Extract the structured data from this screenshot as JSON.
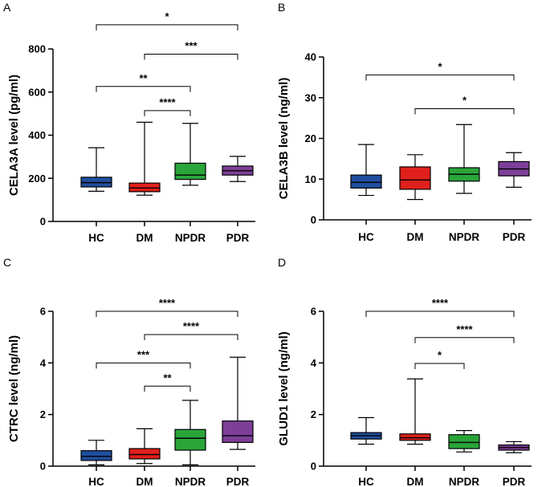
{
  "chart_data": [
    {
      "panel": "A",
      "type": "box",
      "ylabel": "CELA3A level (pg/ml)",
      "ylim": [
        0,
        800
      ],
      "yticks": [
        0,
        200,
        400,
        600,
        800
      ],
      "categories": [
        "HC",
        "DM",
        "NPDR",
        "PDR"
      ],
      "boxes": [
        {
          "name": "HC",
          "min": 140,
          "q1": 160,
          "median": 180,
          "q3": 205,
          "max": 342,
          "color": "#1f4e9e"
        },
        {
          "name": "DM",
          "min": 122,
          "q1": 138,
          "median": 155,
          "q3": 178,
          "max": 460,
          "color": "#e0201c"
        },
        {
          "name": "NPDR",
          "min": 168,
          "q1": 195,
          "median": 215,
          "q3": 270,
          "max": 455,
          "color": "#2aa53a"
        },
        {
          "name": "PDR",
          "min": 185,
          "q1": 215,
          "median": 235,
          "q3": 257,
          "max": 302,
          "color": "#7d3f98"
        }
      ],
      "significance": [
        {
          "from": "NPDR",
          "to": "DM",
          "label": "****",
          "level": 514
        },
        {
          "from": "HC",
          "to": "NPDR",
          "label": "**",
          "level": 626
        },
        {
          "from": "DM",
          "to": "PDR",
          "label": "***",
          "level": 776
        },
        {
          "from": "HC",
          "to": "PDR",
          "label": "*",
          "level": 912
        }
      ]
    },
    {
      "panel": "B",
      "type": "box",
      "ylabel": "CELA3B level (ng/ml)",
      "ylim": [
        0,
        40
      ],
      "yticks": [
        0,
        10,
        20,
        30,
        40
      ],
      "categories": [
        "HC",
        "DM",
        "NPDR",
        "PDR"
      ],
      "boxes": [
        {
          "name": "HC",
          "min": 6,
          "q1": 7.8,
          "median": 9.2,
          "q3": 11,
          "max": 18.5,
          "color": "#1f4e9e"
        },
        {
          "name": "DM",
          "min": 5,
          "q1": 7.5,
          "median": 9.8,
          "q3": 13,
          "max": 16,
          "color": "#e0201c"
        },
        {
          "name": "NPDR",
          "min": 6.5,
          "q1": 9.5,
          "median": 11.2,
          "q3": 12.8,
          "max": 23.4,
          "color": "#2aa53a"
        },
        {
          "name": "PDR",
          "min": 8,
          "q1": 10.8,
          "median": 12.5,
          "q3": 14.3,
          "max": 16.5,
          "color": "#7d3f98"
        }
      ],
      "significance": [
        {
          "from": "DM",
          "to": "PDR",
          "label": "*",
          "level": 27.3
        },
        {
          "from": "HC",
          "to": "PDR",
          "label": "*",
          "level": 35.6
        }
      ]
    },
    {
      "panel": "C",
      "type": "box",
      "ylabel": "CTRC level (ng/ml)",
      "ylim": [
        0,
        6
      ],
      "yticks": [
        0,
        2,
        4,
        6
      ],
      "categories": [
        "HC",
        "DM",
        "NPDR",
        "PDR"
      ],
      "boxes": [
        {
          "name": "HC",
          "min": 0.05,
          "q1": 0.22,
          "median": 0.38,
          "q3": 0.6,
          "max": 1.0,
          "color": "#1f4e9e"
        },
        {
          "name": "DM",
          "min": 0.1,
          "q1": 0.28,
          "median": 0.45,
          "q3": 0.68,
          "max": 1.45,
          "color": "#e0201c"
        },
        {
          "name": "NPDR",
          "min": 0.05,
          "q1": 0.62,
          "median": 1.08,
          "q3": 1.42,
          "max": 2.55,
          "color": "#2aa53a"
        },
        {
          "name": "PDR",
          "min": 0.65,
          "q1": 0.92,
          "median": 1.18,
          "q3": 1.75,
          "max": 4.22,
          "color": "#7d3f98"
        }
      ],
      "significance": [
        {
          "from": "DM",
          "to": "NPDR",
          "label": "**",
          "level": 3.1
        },
        {
          "from": "HC",
          "to": "NPDR",
          "label": "***",
          "level": 4.0
        },
        {
          "from": "DM",
          "to": "PDR",
          "label": "****",
          "level": 5.1
        },
        {
          "from": "HC",
          "to": "PDR",
          "label": "****",
          "level": 6.0
        }
      ]
    },
    {
      "panel": "D",
      "type": "box",
      "ylabel": "GLUD1 level (ng/ml)",
      "ylim": [
        0,
        6
      ],
      "yticks": [
        0,
        2,
        4,
        6
      ],
      "categories": [
        "HC",
        "DM",
        "NPDR",
        "PDR"
      ],
      "boxes": [
        {
          "name": "HC",
          "min": 0.85,
          "q1": 1.05,
          "median": 1.18,
          "q3": 1.3,
          "max": 1.88,
          "color": "#1f4e9e"
        },
        {
          "name": "DM",
          "min": 0.85,
          "q1": 1.0,
          "median": 1.1,
          "q3": 1.25,
          "max": 3.38,
          "color": "#e0201c"
        },
        {
          "name": "NPDR",
          "min": 0.55,
          "q1": 0.68,
          "median": 0.92,
          "q3": 1.22,
          "max": 1.38,
          "color": "#2aa53a"
        },
        {
          "name": "PDR",
          "min": 0.52,
          "q1": 0.62,
          "median": 0.72,
          "q3": 0.82,
          "max": 0.95,
          "color": "#7d3f98"
        }
      ],
      "significance": [
        {
          "from": "DM",
          "to": "NPDR",
          "label": "*",
          "level": 3.98
        },
        {
          "from": "DM",
          "to": "PDR",
          "label": "****",
          "level": 4.98
        },
        {
          "from": "HC",
          "to": "PDR",
          "label": "****",
          "level": 6.0
        }
      ]
    }
  ]
}
